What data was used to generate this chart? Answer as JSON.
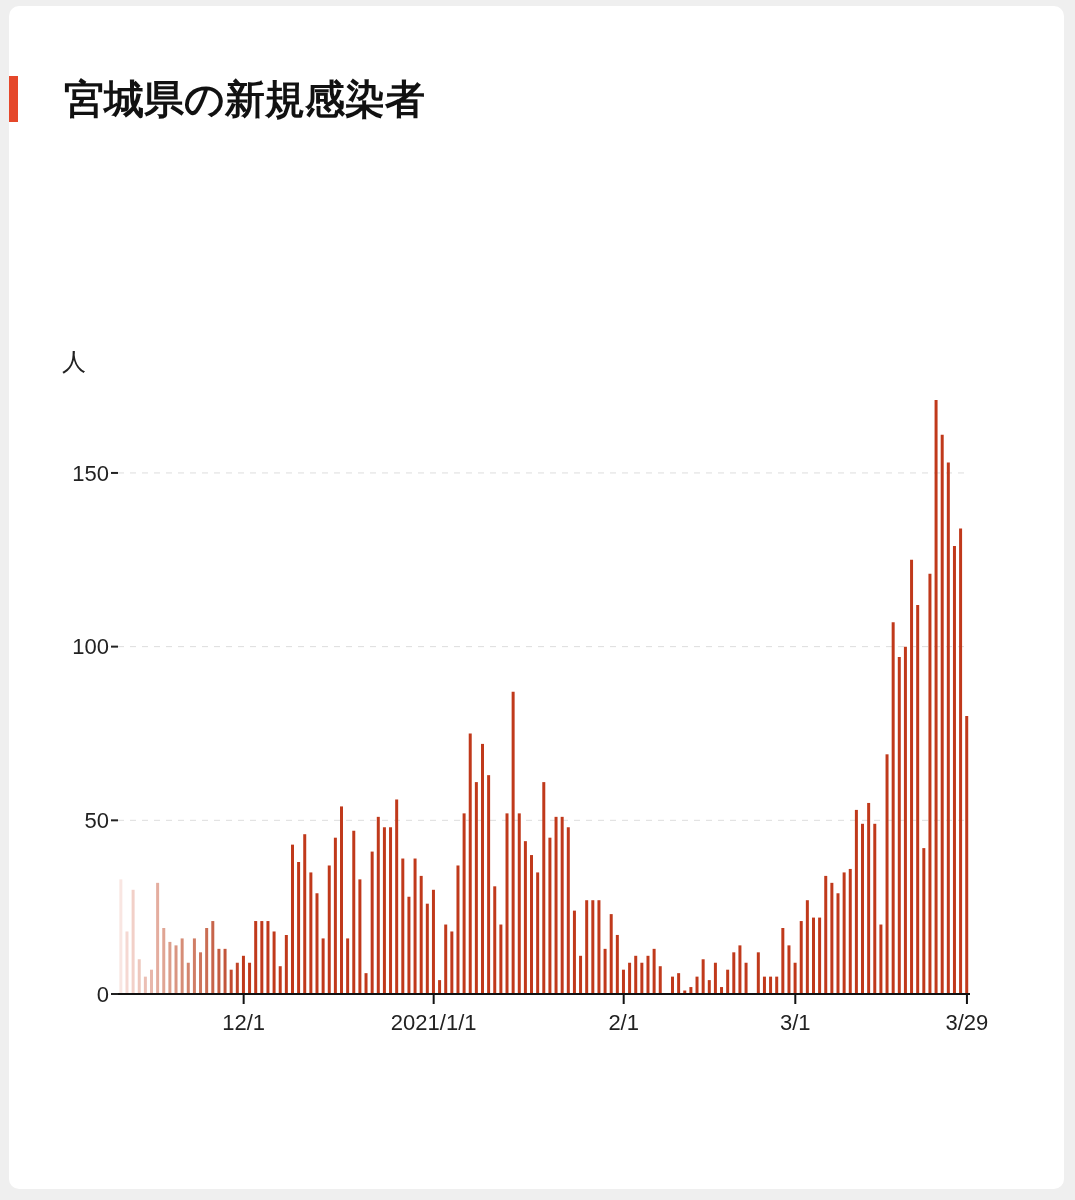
{
  "chart_data": {
    "type": "bar",
    "title": "宮城県の新規感染者",
    "ylabel": "人",
    "categories": [
      null,
      null,
      null,
      null,
      null,
      null,
      null,
      null,
      null,
      null,
      null,
      null,
      null,
      null,
      null,
      null,
      null,
      null,
      null,
      null,
      "12/1",
      null,
      null,
      null,
      null,
      null,
      null,
      null,
      null,
      null,
      null,
      null,
      null,
      null,
      null,
      null,
      null,
      null,
      null,
      null,
      null,
      null,
      null,
      null,
      null,
      null,
      null,
      null,
      null,
      null,
      null,
      "2021/1/1",
      null,
      null,
      null,
      null,
      null,
      null,
      null,
      null,
      null,
      null,
      null,
      null,
      null,
      null,
      null,
      null,
      null,
      null,
      null,
      null,
      null,
      null,
      null,
      null,
      null,
      null,
      null,
      null,
      null,
      null,
      "2/1",
      null,
      null,
      null,
      null,
      null,
      null,
      null,
      null,
      null,
      null,
      null,
      null,
      null,
      null,
      null,
      null,
      null,
      null,
      null,
      null,
      null,
      null,
      null,
      null,
      null,
      null,
      null,
      "3/1",
      null,
      null,
      null,
      null,
      null,
      null,
      null,
      null,
      null,
      null,
      null,
      null,
      null,
      null,
      null,
      null,
      null,
      null,
      null,
      null,
      null,
      null,
      null,
      null,
      null,
      null,
      null,
      "3/29"
    ],
    "values": [
      33,
      18,
      30,
      10,
      5,
      7,
      32,
      19,
      15,
      14,
      16,
      9,
      16,
      12,
      19,
      21,
      13,
      13,
      7,
      9,
      11,
      9,
      21,
      21,
      21,
      18,
      8,
      17,
      43,
      38,
      46,
      35,
      29,
      16,
      37,
      45,
      54,
      16,
      47,
      33,
      6,
      41,
      51,
      48,
      48,
      56,
      39,
      28,
      39,
      34,
      26,
      30,
      4,
      20,
      18,
      37,
      52,
      75,
      61,
      72,
      63,
      31,
      20,
      52,
      87,
      52,
      44,
      40,
      35,
      61,
      45,
      51,
      51,
      48,
      24,
      11,
      27,
      27,
      27,
      13,
      23,
      17,
      7,
      9,
      11,
      9,
      11,
      13,
      8,
      0,
      5,
      6,
      1,
      2,
      5,
      10,
      4,
      9,
      2,
      7,
      12,
      14,
      9,
      0,
      12,
      5,
      5,
      5,
      19,
      14,
      9,
      21,
      27,
      22,
      22,
      34,
      32,
      29,
      35,
      36,
      53,
      49,
      55,
      49,
      20,
      69,
      107,
      97,
      100,
      125,
      112,
      42,
      121,
      171,
      161,
      153,
      129,
      134,
      80
    ],
    "colors": [
      "#f9e6e2",
      "#f5d8d2",
      "#f2d0c8",
      "#eec7bd",
      "#ebbfb4",
      "#e8b7ab",
      "#e4ad9f",
      "#e0a594",
      "#dc9d8a",
      "#d99581",
      "#d68d77",
      "#d3856e",
      "#d07d65",
      "#cd755c",
      "#ca6d53",
      "#c7654b",
      "#c45d42",
      "#c2553a",
      "#c14c31",
      "#c04428",
      "#c0391b",
      "#c0391b",
      "#c0391b",
      "#c0391b",
      "#c0391b",
      "#c0391b",
      "#c0391b",
      "#c0391b",
      "#c0391b",
      "#c0391b",
      "#c0391b",
      "#c0391b",
      "#c0391b",
      "#c0391b",
      "#c0391b",
      "#c0391b",
      "#c0391b",
      "#c0391b",
      "#c0391b",
      "#c0391b",
      "#c0391b",
      "#c0391b",
      "#c0391b",
      "#c0391b",
      "#c0391b",
      "#c0391b",
      "#c0391b",
      "#c0391b",
      "#c0391b",
      "#c0391b",
      "#c0391b",
      "#c0391b",
      "#c0391b",
      "#c0391b",
      "#c0391b",
      "#c0391b",
      "#c0391b",
      "#c0391b",
      "#c0391b",
      "#c0391b",
      "#c0391b",
      "#c0391b",
      "#c0391b",
      "#c0391b",
      "#c0391b",
      "#c0391b",
      "#c0391b",
      "#c0391b",
      "#c0391b",
      "#c0391b",
      "#c0391b",
      "#c0391b",
      "#c0391b",
      "#c0391b",
      "#c0391b",
      "#c0391b",
      "#c0391b",
      "#c0391b",
      "#c0391b",
      "#c0391b",
      "#c0391b",
      "#c0391b",
      "#c0391b",
      "#c0391b",
      "#c0391b",
      "#c0391b",
      "#c0391b",
      "#c0391b",
      "#c0391b",
      "#c0391b",
      "#c0391b",
      "#c0391b",
      "#c0391b",
      "#c0391b",
      "#c0391b",
      "#c0391b",
      "#c0391b",
      "#c0391b",
      "#c0391b",
      "#c0391b",
      "#c0391b",
      "#c0391b",
      "#c0391b",
      "#c0391b",
      "#c0391b",
      "#c0391b",
      "#c0391b",
      "#c0391b",
      "#c0391b",
      "#c0391b",
      "#c0391b",
      "#c0391b",
      "#c0391b",
      "#c0391b",
      "#c0391b",
      "#c0391b",
      "#c0391b",
      "#c0391b",
      "#c0391b",
      "#c0391b",
      "#c0391b",
      "#c0391b",
      "#c0391b",
      "#c0391b",
      "#c0391b",
      "#c0391b",
      "#c0391b",
      "#c0391b",
      "#c0391b",
      "#c0391b",
      "#c0391b",
      "#c0391b",
      "#c0391b",
      "#c0391b",
      "#c0391b",
      "#c0391b",
      "#c0391b",
      "#c0391b",
      "#c0391b"
    ],
    "ylim": [
      0,
      171
    ],
    "yticks": [
      0,
      50,
      100,
      150
    ],
    "grid": "y"
  }
}
